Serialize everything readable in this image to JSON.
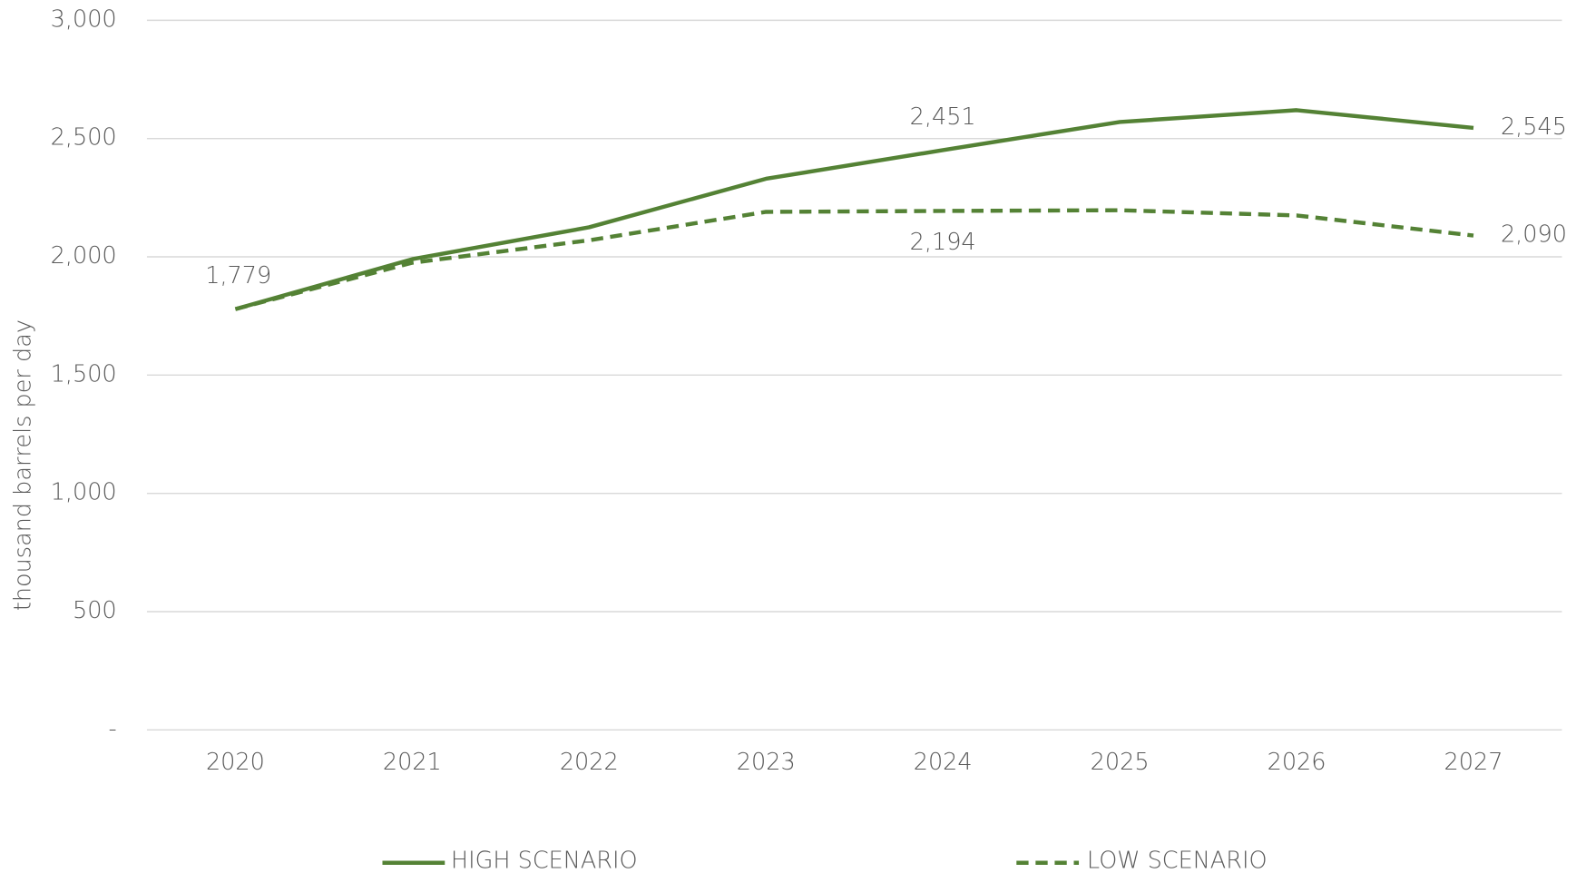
{
  "chart_data": {
    "type": "line",
    "y_label": "thousand barrels per day",
    "categories": [
      "2020",
      "2021",
      "2022",
      "2023",
      "2024",
      "2025",
      "2026",
      "2027"
    ],
    "series": [
      {
        "name": "HIGH SCENARIO",
        "color": "#548235",
        "line_style": "solid",
        "values": [
          1779,
          1990,
          2125,
          2330,
          2451,
          2570,
          2620,
          2545
        ],
        "value_labels": [
          "1,779",
          null,
          null,
          null,
          "2,451",
          null,
          null,
          "2,545"
        ]
      },
      {
        "name": "LOW SCENARIO",
        "color": "#548235",
        "line_style": "dashed",
        "values": [
          1779,
          1975,
          2070,
          2190,
          2194,
          2197,
          2175,
          2090
        ],
        "value_labels": [
          null,
          null,
          null,
          null,
          "2,194",
          null,
          null,
          "2,090"
        ]
      }
    ],
    "ylim": [
      0,
      3000
    ],
    "yticks": [
      {
        "value": 0,
        "label": "-"
      },
      500,
      {
        "value": 1000,
        "label": "1,000"
      },
      {
        "value": 1500,
        "label": "1,500"
      },
      {
        "value": 2000,
        "label": "2,000"
      },
      {
        "value": 2500,
        "label": "2,500"
      },
      {
        "value": 3000,
        "label": "3,000"
      }
    ],
    "grid": true,
    "legend": "bottom"
  }
}
